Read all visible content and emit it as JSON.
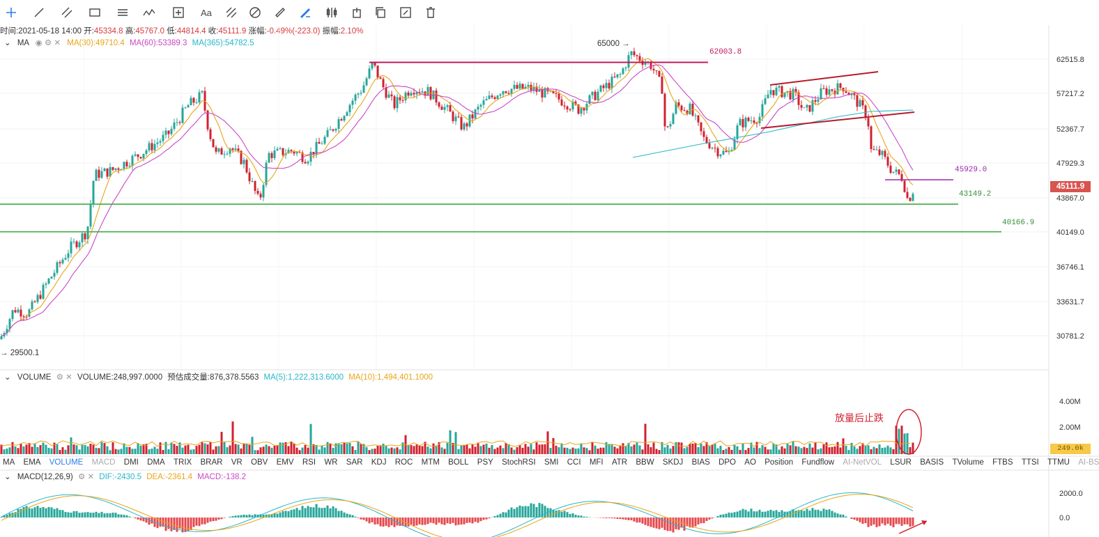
{
  "toolbar": {
    "tools": [
      "crosshair-icon",
      "trend-line-icon",
      "parallel-lines-icon",
      "rectangle-icon",
      "horizontal-lines-icon",
      "wave-icon",
      "measure-icon",
      "text-tool-icon",
      "fib-icon",
      "pattern-icon",
      "ruler-icon",
      "brush-icon",
      "candle-icon",
      "export-icon",
      "copy-icon",
      "edit-icon",
      "trash-icon"
    ]
  },
  "ohlc": {
    "time_label": "时间:",
    "time": "2021-05-18 14:00",
    "open_label": "开:",
    "open": "45334.8",
    "high_label": "高:",
    "high": "45767.0",
    "low_label": "低:",
    "low": "44814.4",
    "close_label": "收:",
    "close": "45111.9",
    "change_label": "涨幅:",
    "change": "-0.49%(-223.0)",
    "amp_label": "振幅:",
    "amp": "2.10%"
  },
  "ma_legend": {
    "name": "MA",
    "ma30": "MA(30):49710.4",
    "ma60": "MA(60):53389.3",
    "ma365": "MA(365):54782.5"
  },
  "price_axis": {
    "ticks": [
      "62515.8",
      "57217.2",
      "52367.7",
      "47929.3",
      "43867.0",
      "40149.0",
      "36746.1",
      "33631.7",
      "30781.2"
    ],
    "current": "45111.9"
  },
  "annotations": {
    "high_marker": "65000",
    "low_marker": "29500.1",
    "level_62003": "62003.8",
    "level_45929": "45929.0",
    "level_43149": "43149.2",
    "level_40166": "40166.9",
    "volume_note": "放量后止跌"
  },
  "volume_legend": {
    "name": "VOLUME",
    "volume": "VOLUME:248,997.0000",
    "estimate": "预估成交量:876,378.5563",
    "ma5": "MA(5):1,222,313.6000",
    "ma10": "MA(10):1,494,401.1000"
  },
  "volume_axis": {
    "ticks": [
      "4.00M",
      "2.00M"
    ],
    "current": "249.0k"
  },
  "indicator_tabs": [
    "MA",
    "EMA",
    "VOLUME",
    "MACD",
    "DMI",
    "DMA",
    "TRIX",
    "BRAR",
    "VR",
    "OBV",
    "EMV",
    "RSI",
    "WR",
    "SAR",
    "KDJ",
    "ROC",
    "MTM",
    "BOLL",
    "PSY",
    "StochRSI",
    "SMI",
    "CCI",
    "MFI",
    "ATR",
    "BBW",
    "SKDJ",
    "BIAS",
    "DPO",
    "AO",
    "Position",
    "Fundflow",
    "AI-NetVOL",
    "LSUR",
    "BASIS",
    "TVolume",
    "FTBS",
    "TTSI",
    "TTMU",
    "AI-BSI"
  ],
  "active_tab": "VOLUME",
  "macd_legend": {
    "name": "MACD(12,26,9)",
    "dif": "DIF:-2430.5",
    "dea": "DEA:-2361.4",
    "macd": "MACD:-138.2"
  },
  "macd_axis": {
    "ticks": [
      "2000.0",
      "0.0"
    ]
  },
  "colors": {
    "up": "#26a69a",
    "down": "#d0212e",
    "ma30": "#e8a417",
    "ma60": "#c949c4",
    "ma365": "#26b7c9",
    "support": "#4caf50",
    "resistance": "#c2185b",
    "channel": "#b71c2c"
  }
}
